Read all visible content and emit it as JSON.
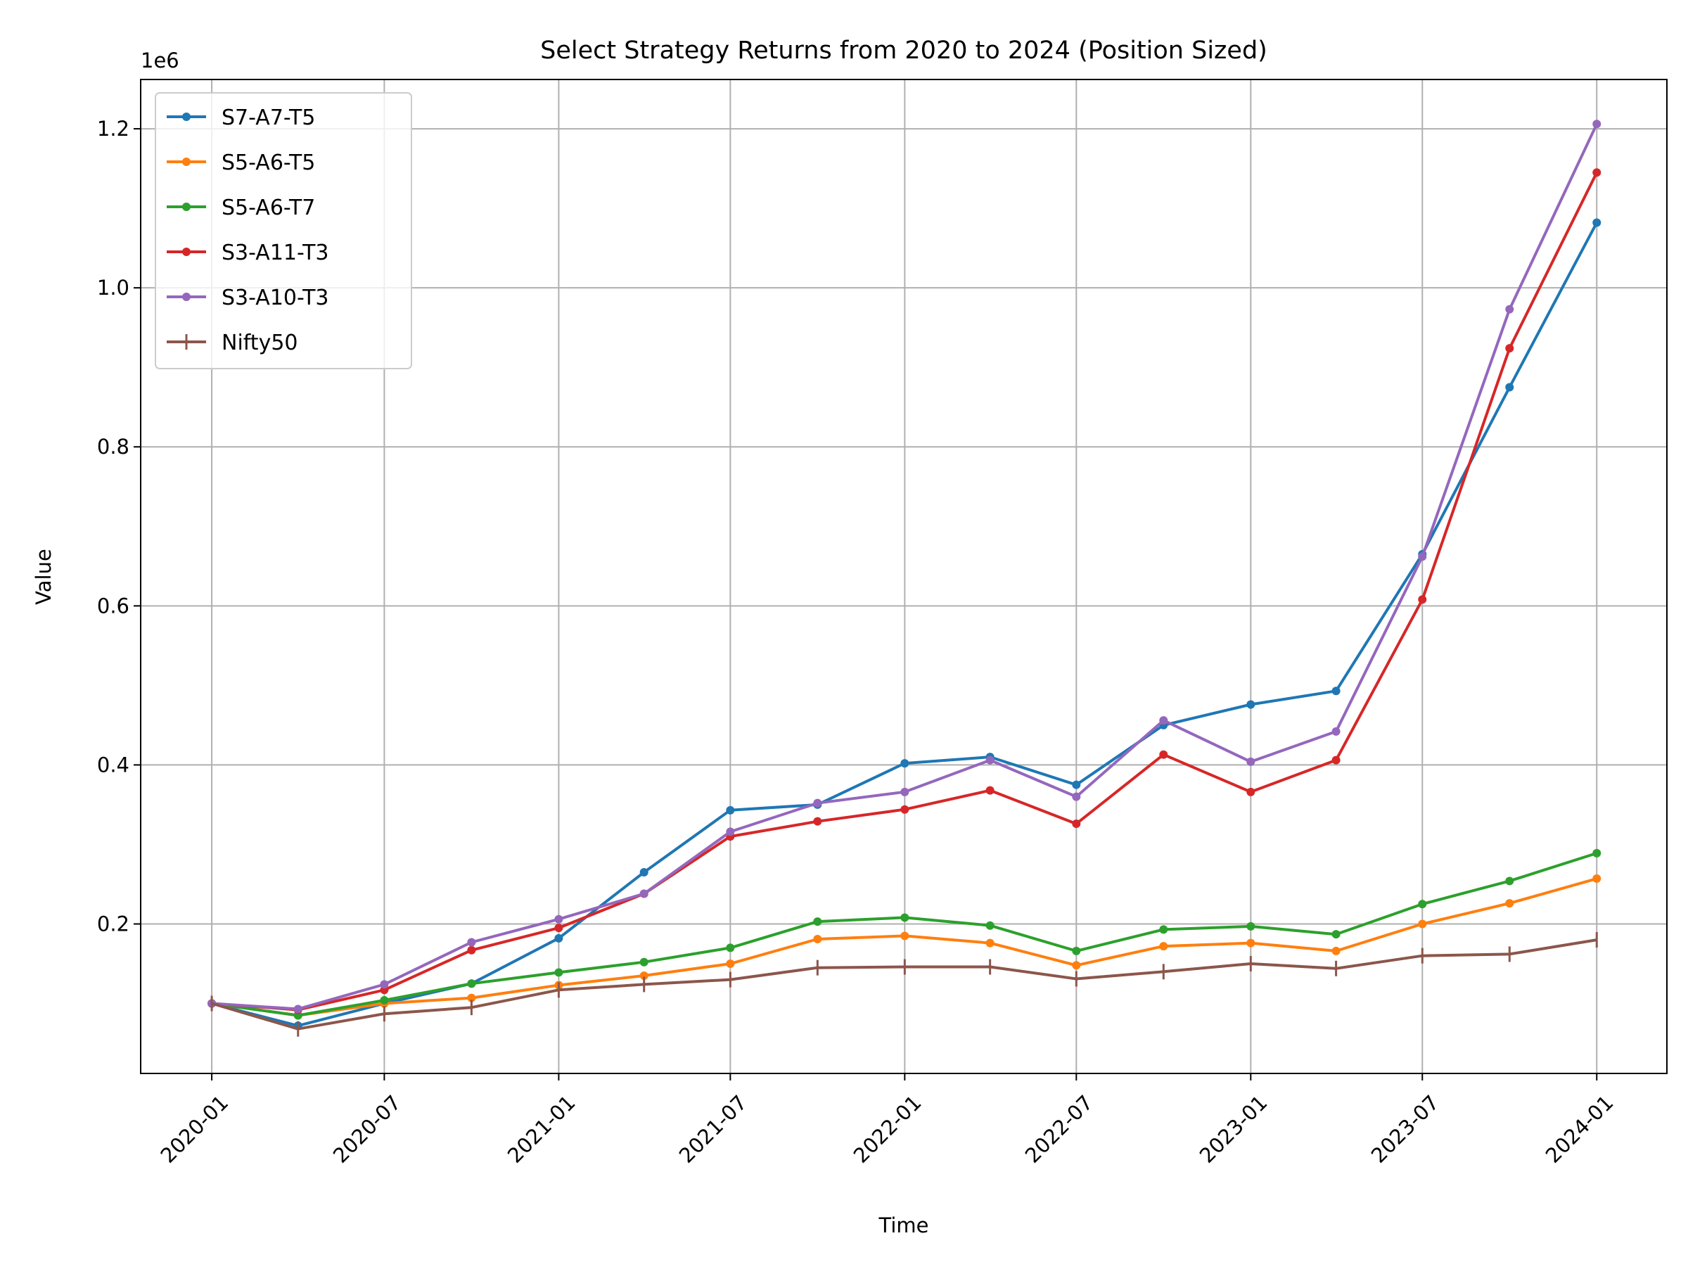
{
  "chart_data": {
    "type": "line",
    "title": "Select Strategy Returns from 2020 to 2024 (Position Sized)",
    "xlabel": "Time",
    "ylabel": "Value",
    "y_offset_label": "1e6",
    "x": [
      "2020-01-01",
      "2020-04-01",
      "2020-07-01",
      "2020-10-01",
      "2021-01-01",
      "2021-04-01",
      "2021-07-01",
      "2021-10-01",
      "2022-01-01",
      "2022-04-01",
      "2022-07-01",
      "2022-10-01",
      "2023-01-01",
      "2023-04-01",
      "2023-07-01",
      "2023-10-01",
      "2024-01-01"
    ],
    "xlim": [
      "2019-10-18",
      "2024-03-15"
    ],
    "ylim": [
      0.012,
      1.262
    ],
    "x_ticks": [
      "2020-01-01",
      "2020-07-01",
      "2021-01-01",
      "2021-07-01",
      "2022-01-01",
      "2022-07-01",
      "2023-01-01",
      "2023-07-01",
      "2024-01-01"
    ],
    "x_tick_labels": [
      "2020-01",
      "2020-07",
      "2021-01",
      "2021-07",
      "2022-01",
      "2022-07",
      "2023-01",
      "2023-07",
      "2024-01"
    ],
    "y_ticks": [
      0.2,
      0.4,
      0.6,
      0.8,
      1.0,
      1.2
    ],
    "y_tick_labels": [
      "0.2",
      "0.4",
      "0.6",
      "0.8",
      "1.0",
      "1.2"
    ],
    "grid": true,
    "legend_position": "top-left",
    "series": [
      {
        "name": "S7-A7-T5",
        "color": "#1f77b4",
        "marker": "dot",
        "values": [
          0.1,
          0.072,
          0.1,
          0.125,
          0.182,
          0.265,
          0.343,
          0.35,
          0.402,
          0.41,
          0.375,
          0.45,
          0.476,
          0.493,
          0.665,
          0.875,
          1.082
        ]
      },
      {
        "name": "S5-A6-T5",
        "color": "#ff7f0e",
        "marker": "dot",
        "values": [
          0.1,
          0.085,
          0.1,
          0.107,
          0.123,
          0.135,
          0.15,
          0.181,
          0.185,
          0.176,
          0.148,
          0.172,
          0.176,
          0.166,
          0.2,
          0.226,
          0.257
        ]
      },
      {
        "name": "S5-A6-T7",
        "color": "#2ca02c",
        "marker": "dot",
        "values": [
          0.1,
          0.085,
          0.104,
          0.125,
          0.139,
          0.152,
          0.17,
          0.203,
          0.208,
          0.198,
          0.166,
          0.193,
          0.197,
          0.187,
          0.225,
          0.254,
          0.289
        ]
      },
      {
        "name": "S3-A11-T3",
        "color": "#d62728",
        "marker": "dot",
        "values": [
          0.1,
          0.092,
          0.117,
          0.167,
          0.195,
          0.238,
          0.31,
          0.329,
          0.344,
          0.368,
          0.326,
          0.413,
          0.366,
          0.406,
          0.608,
          0.924,
          1.145
        ]
      },
      {
        "name": "S3-A10-T3",
        "color": "#9467bd",
        "marker": "dot",
        "values": [
          0.1,
          0.093,
          0.124,
          0.177,
          0.206,
          0.238,
          0.316,
          0.352,
          0.366,
          0.406,
          0.36,
          0.456,
          0.404,
          0.442,
          0.662,
          0.973,
          1.206
        ]
      },
      {
        "name": "Nifty50",
        "color": "#8c564b",
        "marker": "tick",
        "values": [
          0.1,
          0.068,
          0.087,
          0.095,
          0.117,
          0.124,
          0.13,
          0.145,
          0.146,
          0.146,
          0.131,
          0.14,
          0.15,
          0.144,
          0.16,
          0.162,
          0.18
        ]
      }
    ]
  }
}
